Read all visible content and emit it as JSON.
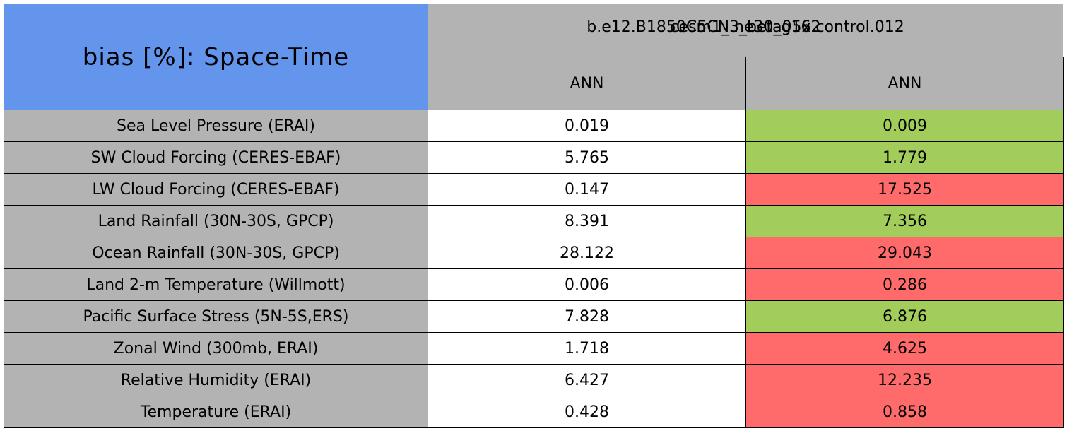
{
  "header": {
    "title": "bias [%]: Space-Time",
    "cases": [
      "b.e12.B1850C5CN.ne30_g16.control.012",
      "cesm1_3_beta05x2"
    ],
    "columns": [
      "ANN",
      "ANN"
    ],
    "colors": {
      "title": "#6495ed",
      "header": "#b3b3b3"
    }
  },
  "table": {
    "colors": {
      "label": "#b3b3b3",
      "neutral": "#ffffff",
      "better": "#a2cd5a",
      "worse": "#ff6a6a"
    },
    "rows": [
      {
        "label": "Sea Level Pressure (ERAI)",
        "values": [
          "0.019",
          "0.009"
        ],
        "shades": [
          "neutral",
          "better"
        ]
      },
      {
        "label": "SW Cloud Forcing (CERES-EBAF)",
        "values": [
          "5.765",
          "1.779"
        ],
        "shades": [
          "neutral",
          "better"
        ]
      },
      {
        "label": "LW Cloud Forcing (CERES-EBAF)",
        "values": [
          "0.147",
          "17.525"
        ],
        "shades": [
          "neutral",
          "worse"
        ]
      },
      {
        "label": "Land Rainfall (30N-30S, GPCP)",
        "values": [
          "8.391",
          "7.356"
        ],
        "shades": [
          "neutral",
          "better"
        ]
      },
      {
        "label": "Ocean Rainfall (30N-30S, GPCP)",
        "values": [
          "28.122",
          "29.043"
        ],
        "shades": [
          "neutral",
          "worse"
        ]
      },
      {
        "label": "Land 2-m Temperature (Willmott)",
        "values": [
          "0.006",
          "0.286"
        ],
        "shades": [
          "neutral",
          "worse"
        ]
      },
      {
        "label": "Pacific Surface Stress (5N-5S,ERS)",
        "values": [
          "7.828",
          "6.876"
        ],
        "shades": [
          "neutral",
          "better"
        ]
      },
      {
        "label": "Zonal Wind (300mb, ERAI)",
        "values": [
          "1.718",
          "4.625"
        ],
        "shades": [
          "neutral",
          "worse"
        ]
      },
      {
        "label": "Relative Humidity (ERAI)",
        "values": [
          "6.427",
          "12.235"
        ],
        "shades": [
          "neutral",
          "worse"
        ]
      },
      {
        "label": "Temperature (ERAI)",
        "values": [
          "0.428",
          "0.858"
        ],
        "shades": [
          "neutral",
          "worse"
        ]
      }
    ]
  }
}
